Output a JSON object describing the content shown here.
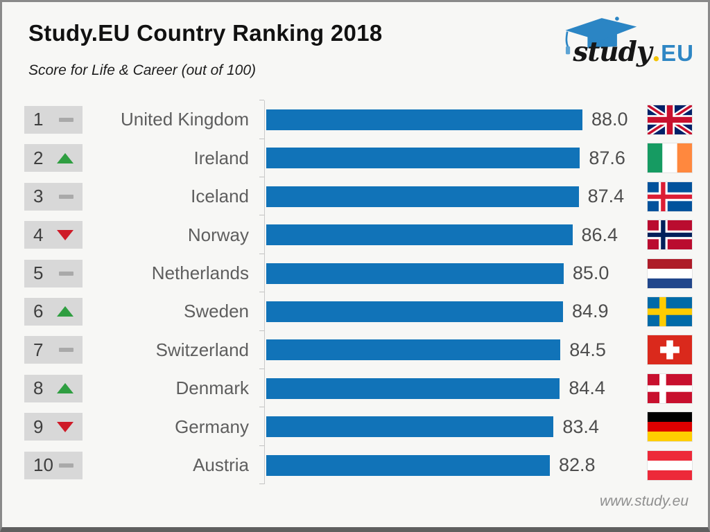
{
  "header": {
    "title": "Study.EU Country Ranking 2018",
    "subtitle": "Score for Life & Career (out of 100)",
    "logo": {
      "word": "study",
      "dot": ".",
      "suffix": "EU"
    }
  },
  "footer": {
    "url": "www.study.eu"
  },
  "colors": {
    "bar": "#1173b8",
    "trend_up": "#2f9e41",
    "trend_down": "#ce1b28",
    "trend_same": "#a9a9a9",
    "badge_bg": "#d8d8d8",
    "logo_blue": "#2e86c4",
    "logo_yellow": "#f3c300"
  },
  "chart_data": {
    "type": "bar",
    "orientation": "horizontal",
    "title": "Study.EU Country Ranking 2018",
    "subtitle": "Score for Life & Career (out of 100)",
    "categories": [
      "United Kingdom",
      "Ireland",
      "Iceland",
      "Norway",
      "Netherlands",
      "Sweden",
      "Switzerland",
      "Denmark",
      "Germany",
      "Austria"
    ],
    "values": [
      88.0,
      87.6,
      87.4,
      86.4,
      85.0,
      84.9,
      84.5,
      84.4,
      83.4,
      82.8
    ],
    "ranks": [
      1,
      2,
      3,
      4,
      5,
      6,
      7,
      8,
      9,
      10
    ],
    "trends": [
      "same",
      "up",
      "same",
      "down",
      "same",
      "up",
      "same",
      "up",
      "down",
      "same"
    ],
    "flags": [
      "gb",
      "ie",
      "is",
      "no",
      "nl",
      "se",
      "ch",
      "dk",
      "de",
      "at"
    ],
    "xlim": [
      37.6,
      88.0
    ],
    "grid": false,
    "legend": "none",
    "value_labels": "right of bar, one decimal"
  }
}
